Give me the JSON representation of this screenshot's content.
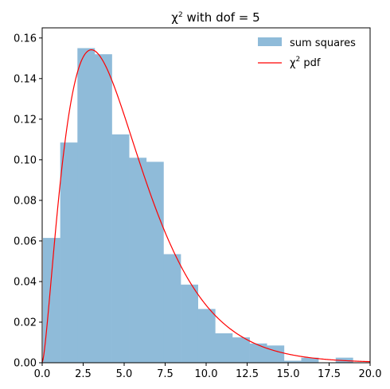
{
  "chart_data": {
    "type": "bar",
    "title": {
      "pre": "χ",
      "sup": "2",
      "post": " with dof = 5"
    },
    "xlim": [
      0,
      20
    ],
    "ylim": [
      0,
      0.165
    ],
    "x_ticks": [
      0,
      2.5,
      5,
      7.5,
      10,
      12.5,
      15,
      17.5,
      20
    ],
    "x_tick_labels": [
      "0.0",
      "2.5",
      "5.0",
      "7.5",
      "10.0",
      "12.5",
      "15.0",
      "17.5",
      "20.0"
    ],
    "y_ticks": [
      0,
      0.02,
      0.04,
      0.06,
      0.08,
      0.1,
      0.12,
      0.14,
      0.16
    ],
    "y_tick_labels": [
      "0.00",
      "0.02",
      "0.04",
      "0.06",
      "0.08",
      "0.10",
      "0.12",
      "0.14",
      "0.16"
    ],
    "grid": false,
    "legend_position": "top-right",
    "histogram": {
      "name": "sum squares",
      "color": "#8fbbd9",
      "bin_width": 1.05,
      "bin_starts": [
        0.05,
        1.1,
        2.15,
        3.2,
        4.25,
        5.3,
        6.35,
        7.4,
        8.45,
        9.5,
        10.55,
        11.6,
        12.65,
        13.7,
        14.75,
        15.8,
        16.85,
        17.9,
        18.95
      ],
      "values": [
        0.0615,
        0.1085,
        0.155,
        0.152,
        0.1125,
        0.101,
        0.099,
        0.0535,
        0.0385,
        0.0265,
        0.0145,
        0.0125,
        0.0095,
        0.0085,
        0.001,
        0.0025,
        0.0,
        0.0025,
        0.0
      ]
    },
    "pdf_curve": {
      "name_pre": "χ",
      "name_sup": "2",
      "name_post": " pdf",
      "color": "#ff0000",
      "dof": 5
    }
  }
}
